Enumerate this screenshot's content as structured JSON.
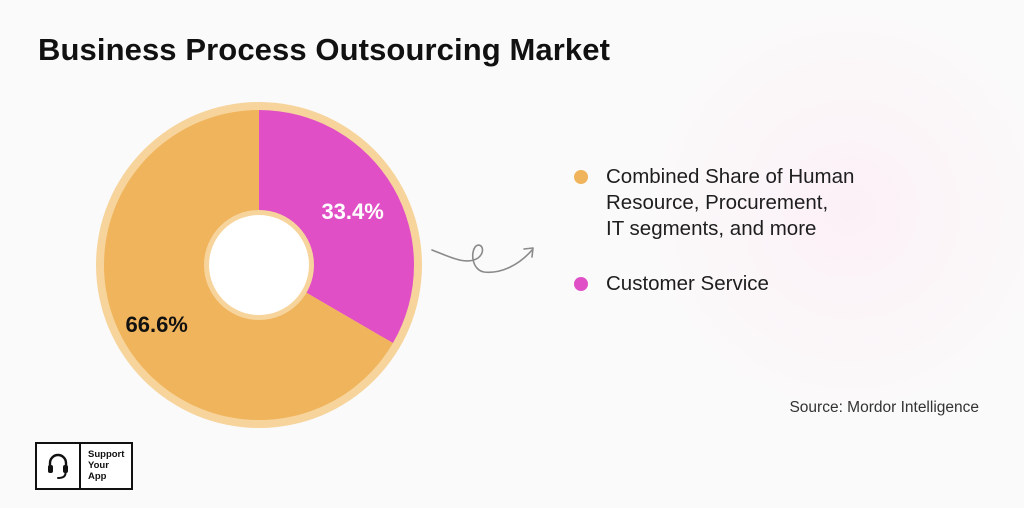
{
  "chart_data": {
    "type": "pie",
    "title": "Business Process Outsourcing Market",
    "donut": true,
    "series": [
      {
        "name": "Combined Share of Human Resource, Procurement, IT segments, and more",
        "value": 66.6,
        "label": "66.6%",
        "color": "#f0b45c"
      },
      {
        "name": "Customer Service",
        "value": 33.4,
        "label": "33.4%",
        "color": "#e04fc6"
      }
    ],
    "legend_position": "right"
  },
  "legend": {
    "items": [
      {
        "lines": [
          "Combined Share of Human",
          "Resource, Procurement,",
          "IT segments, and more"
        ],
        "color": "#f0b45c"
      },
      {
        "lines": [
          "Customer Service"
        ],
        "color": "#e04fc6"
      }
    ]
  },
  "source": "Source: Mordor Intelligence",
  "logo": {
    "icon": "headset-icon",
    "lines": [
      "Support",
      "Your",
      "App"
    ]
  }
}
